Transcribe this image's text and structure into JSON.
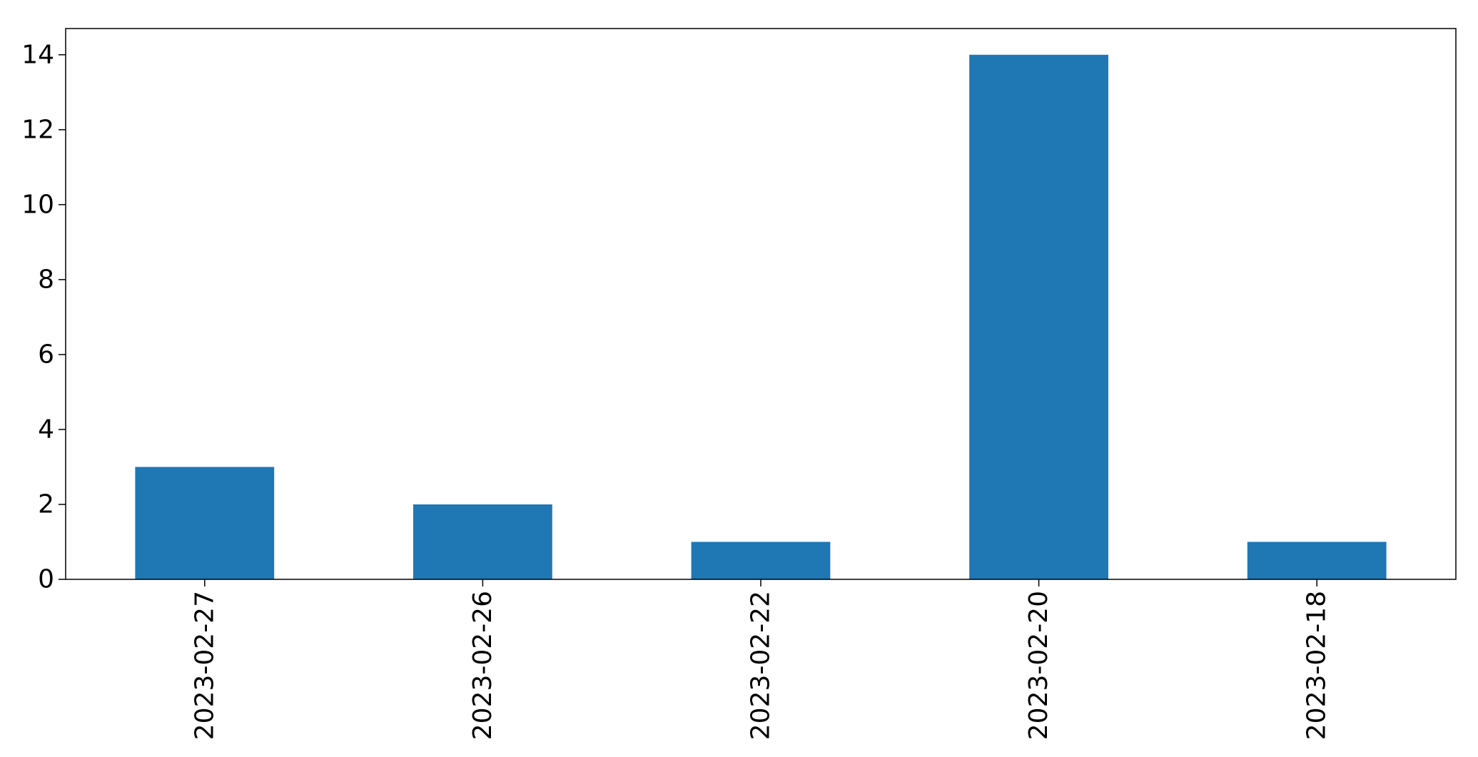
{
  "chart_data": {
    "type": "bar",
    "categories": [
      "2023-02-27",
      "2023-02-26",
      "2023-02-22",
      "2023-02-20",
      "2023-02-18"
    ],
    "values": [
      3,
      2,
      1,
      14,
      1
    ],
    "ylim": [
      0,
      14.7
    ],
    "yticks": [
      0,
      2,
      4,
      6,
      8,
      10,
      12,
      14
    ],
    "ytick_labels": [
      "0",
      "2",
      "4",
      "6",
      "8",
      "10",
      "12",
      "14"
    ],
    "title": "",
    "xlabel": "",
    "ylabel": "",
    "grid": false,
    "bar_color": "#1f77b4"
  }
}
